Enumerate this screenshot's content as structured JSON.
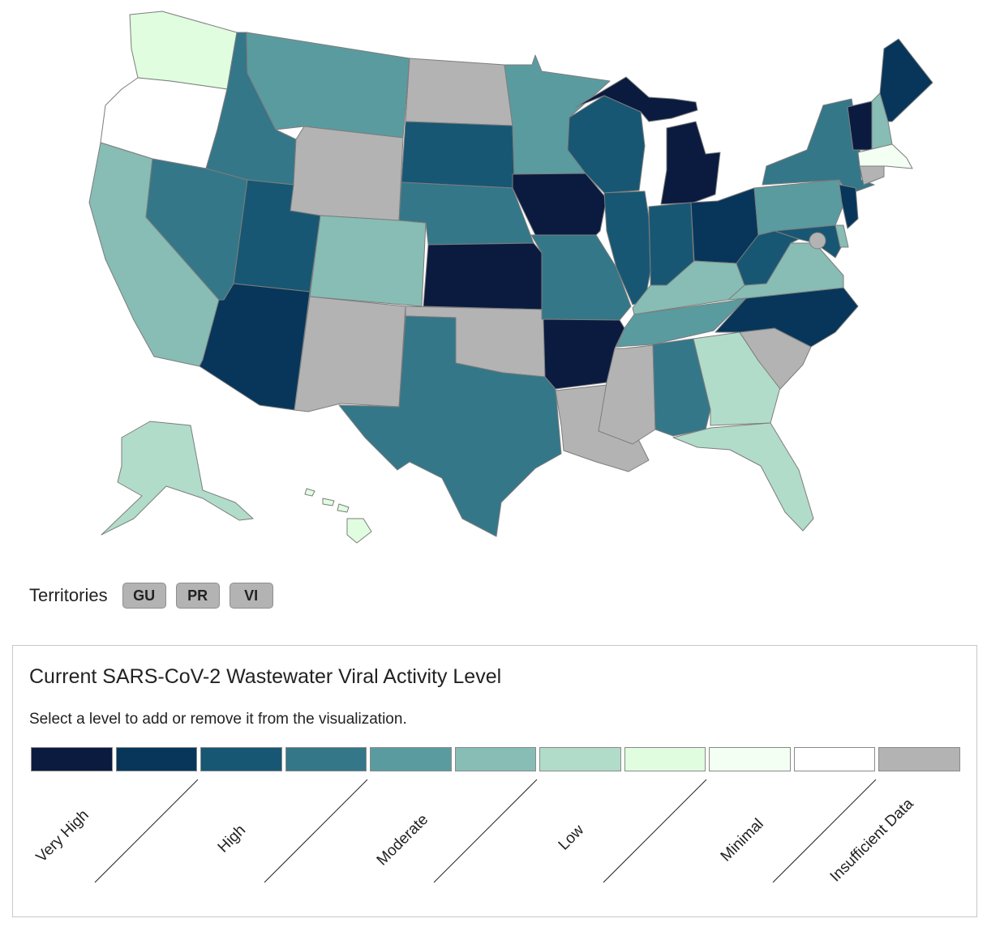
{
  "colors": {
    "very_high_1": "#0b1b3f",
    "very_high_2": "#07365a",
    "high_1": "#185773",
    "high_2": "#347789",
    "moderate_1": "#5a9ba0",
    "moderate_2": "#87bdb4",
    "low_1": "#b1dcc9",
    "low_2": "#e0fde0",
    "minimal_1": "#f2fff2",
    "minimal_2": "#ffffff",
    "insufficient": "#b3b3b3"
  },
  "map": {
    "states": [
      {
        "id": "WA",
        "level": "low_2"
      },
      {
        "id": "OR",
        "level": "minimal_2"
      },
      {
        "id": "CA",
        "level": "moderate_2"
      },
      {
        "id": "ID",
        "level": "high_2"
      },
      {
        "id": "NV",
        "level": "high_2"
      },
      {
        "id": "MT",
        "level": "moderate_1"
      },
      {
        "id": "WY",
        "level": "insufficient"
      },
      {
        "id": "UT",
        "level": "high_1"
      },
      {
        "id": "AZ",
        "level": "very_high_2"
      },
      {
        "id": "CO",
        "level": "moderate_2"
      },
      {
        "id": "NM",
        "level": "insufficient"
      },
      {
        "id": "ND",
        "level": "insufficient"
      },
      {
        "id": "SD",
        "level": "high_1"
      },
      {
        "id": "NE",
        "level": "high_2"
      },
      {
        "id": "KS",
        "level": "very_high_1"
      },
      {
        "id": "OK",
        "level": "insufficient"
      },
      {
        "id": "TX",
        "level": "high_2"
      },
      {
        "id": "MN",
        "level": "moderate_1"
      },
      {
        "id": "IA",
        "level": "very_high_1"
      },
      {
        "id": "MO",
        "level": "high_2"
      },
      {
        "id": "AR",
        "level": "very_high_1"
      },
      {
        "id": "LA",
        "level": "insufficient"
      },
      {
        "id": "WI",
        "level": "high_1"
      },
      {
        "id": "IL",
        "level": "high_1"
      },
      {
        "id": "MI",
        "level": "very_high_1"
      },
      {
        "id": "IN",
        "level": "high_1"
      },
      {
        "id": "OH",
        "level": "very_high_2"
      },
      {
        "id": "KY",
        "level": "moderate_2"
      },
      {
        "id": "TN",
        "level": "moderate_1"
      },
      {
        "id": "MS",
        "level": "insufficient"
      },
      {
        "id": "AL",
        "level": "high_2"
      },
      {
        "id": "GA",
        "level": "low_1"
      },
      {
        "id": "FL",
        "level": "low_1"
      },
      {
        "id": "SC",
        "level": "insufficient"
      },
      {
        "id": "NC",
        "level": "very_high_2"
      },
      {
        "id": "VA",
        "level": "moderate_2"
      },
      {
        "id": "WV",
        "level": "high_1"
      },
      {
        "id": "PA",
        "level": "moderate_1"
      },
      {
        "id": "NY",
        "level": "high_2"
      },
      {
        "id": "VT",
        "level": "very_high_1"
      },
      {
        "id": "NH",
        "level": "moderate_2"
      },
      {
        "id": "ME",
        "level": "very_high_2"
      },
      {
        "id": "MA",
        "level": "minimal_1"
      },
      {
        "id": "CT",
        "level": "insufficient"
      },
      {
        "id": "NJ",
        "level": "very_high_2"
      },
      {
        "id": "MD",
        "level": "high_1"
      },
      {
        "id": "DE",
        "level": "moderate_2"
      },
      {
        "id": "DC",
        "level": "insufficient"
      },
      {
        "id": "AK",
        "level": "low_1"
      },
      {
        "id": "HI",
        "level": "low_2"
      }
    ]
  },
  "territories": {
    "label": "Territories",
    "items": [
      "GU",
      "PR",
      "VI"
    ]
  },
  "legend": {
    "title": "Current SARS-CoV-2 Wastewater Viral Activity Level",
    "subtitle": "Select a level to add or remove it from the visualization.",
    "swatches": [
      "very_high_1",
      "very_high_2",
      "high_1",
      "high_2",
      "moderate_1",
      "moderate_2",
      "low_1",
      "low_2",
      "minimal_1",
      "minimal_2",
      "insufficient"
    ],
    "labels": [
      "Very High",
      "High",
      "Moderate",
      "Low",
      "Minimal",
      "Insufficient Data"
    ]
  }
}
